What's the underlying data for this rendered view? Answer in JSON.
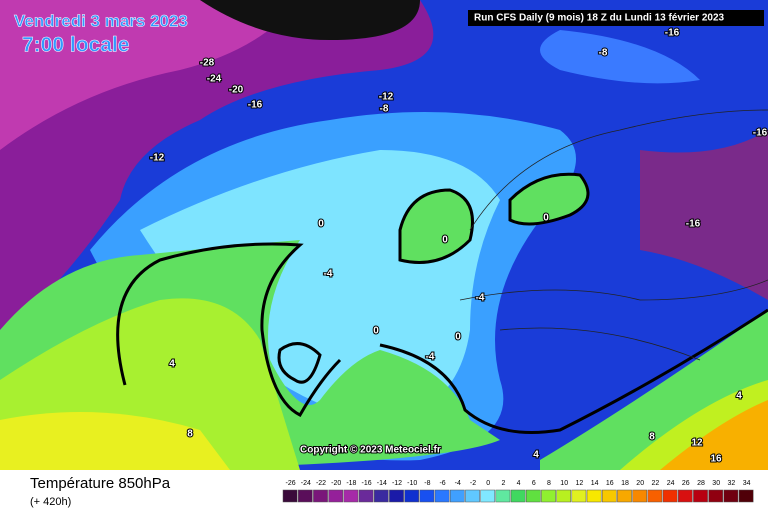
{
  "header": {
    "date": "Vendredi 3 mars 2023",
    "time": "7:00 locale",
    "run": "Run CFS Daily (9 mois) 18 Z du Lundi 13 février 2023"
  },
  "copyright": "Copyright © 2023 Meteociel.fr",
  "footer": {
    "title": "Température 850hPa",
    "lead": "(+ 420h)"
  },
  "contour_labels": [
    -28,
    -24,
    -20,
    -16,
    -12,
    -8,
    -12,
    -8,
    -16,
    -16,
    -16,
    0,
    0,
    0,
    -4,
    -4,
    0,
    0,
    -4,
    4,
    8,
    4,
    8,
    12,
    16,
    4
  ],
  "scale": {
    "labels": [
      -26,
      -24,
      -22,
      -20,
      -18,
      -16,
      -14,
      -12,
      -10,
      -8,
      -6,
      -4,
      -2,
      0,
      2,
      4,
      6,
      8,
      10,
      12,
      14,
      16,
      18,
      20,
      22,
      24,
      26,
      28,
      30,
      32,
      34
    ],
    "colors": [
      "#3a0a3a",
      "#5a0e5a",
      "#7a167a",
      "#95209a",
      "#a62aa8",
      "#6a2a9a",
      "#3a2aa0",
      "#1a1aa8",
      "#1030d0",
      "#1850f0",
      "#2a78ff",
      "#40a0ff",
      "#60c8ff",
      "#80e8ff",
      "#60e8a0",
      "#40d860",
      "#60e040",
      "#90f030",
      "#b8f020",
      "#e0f020",
      "#f8e800",
      "#f8c800",
      "#f8a800",
      "#f88800",
      "#f86000",
      "#f03000",
      "#d81010",
      "#b80010",
      "#900010",
      "#700010",
      "#500008"
    ]
  }
}
